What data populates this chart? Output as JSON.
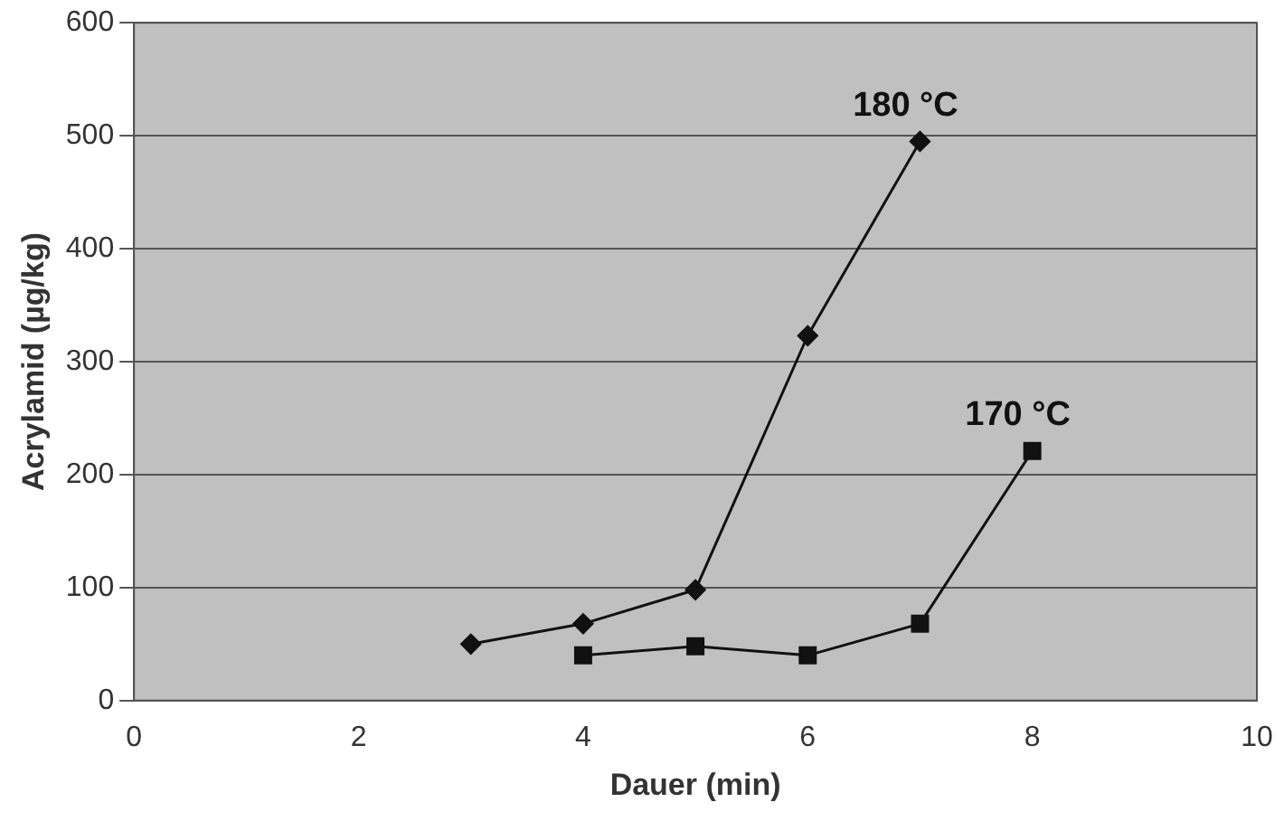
{
  "chart_data": {
    "type": "line",
    "xlabel": "Dauer (min)",
    "ylabel": "Acrylamid (µg/kg)",
    "xlim": [
      0,
      10
    ],
    "xticks": [
      0,
      2,
      4,
      6,
      8,
      10
    ],
    "ylim": [
      0,
      600
    ],
    "yticks": [
      0,
      100,
      200,
      300,
      400,
      500,
      600
    ],
    "grid": "y",
    "legend": false,
    "line_style": "solid",
    "series": [
      {
        "name": "180 °C",
        "color": "#111111",
        "marker": "diamond",
        "x": [
          3,
          4,
          5,
          6,
          7
        ],
        "values": [
          50,
          68,
          98,
          323,
          495
        ]
      },
      {
        "name": "170 °C",
        "color": "#111111",
        "marker": "square",
        "x": [
          4,
          5,
          6,
          7,
          8
        ],
        "values": [
          40,
          48,
          40,
          68,
          221
        ]
      }
    ]
  }
}
